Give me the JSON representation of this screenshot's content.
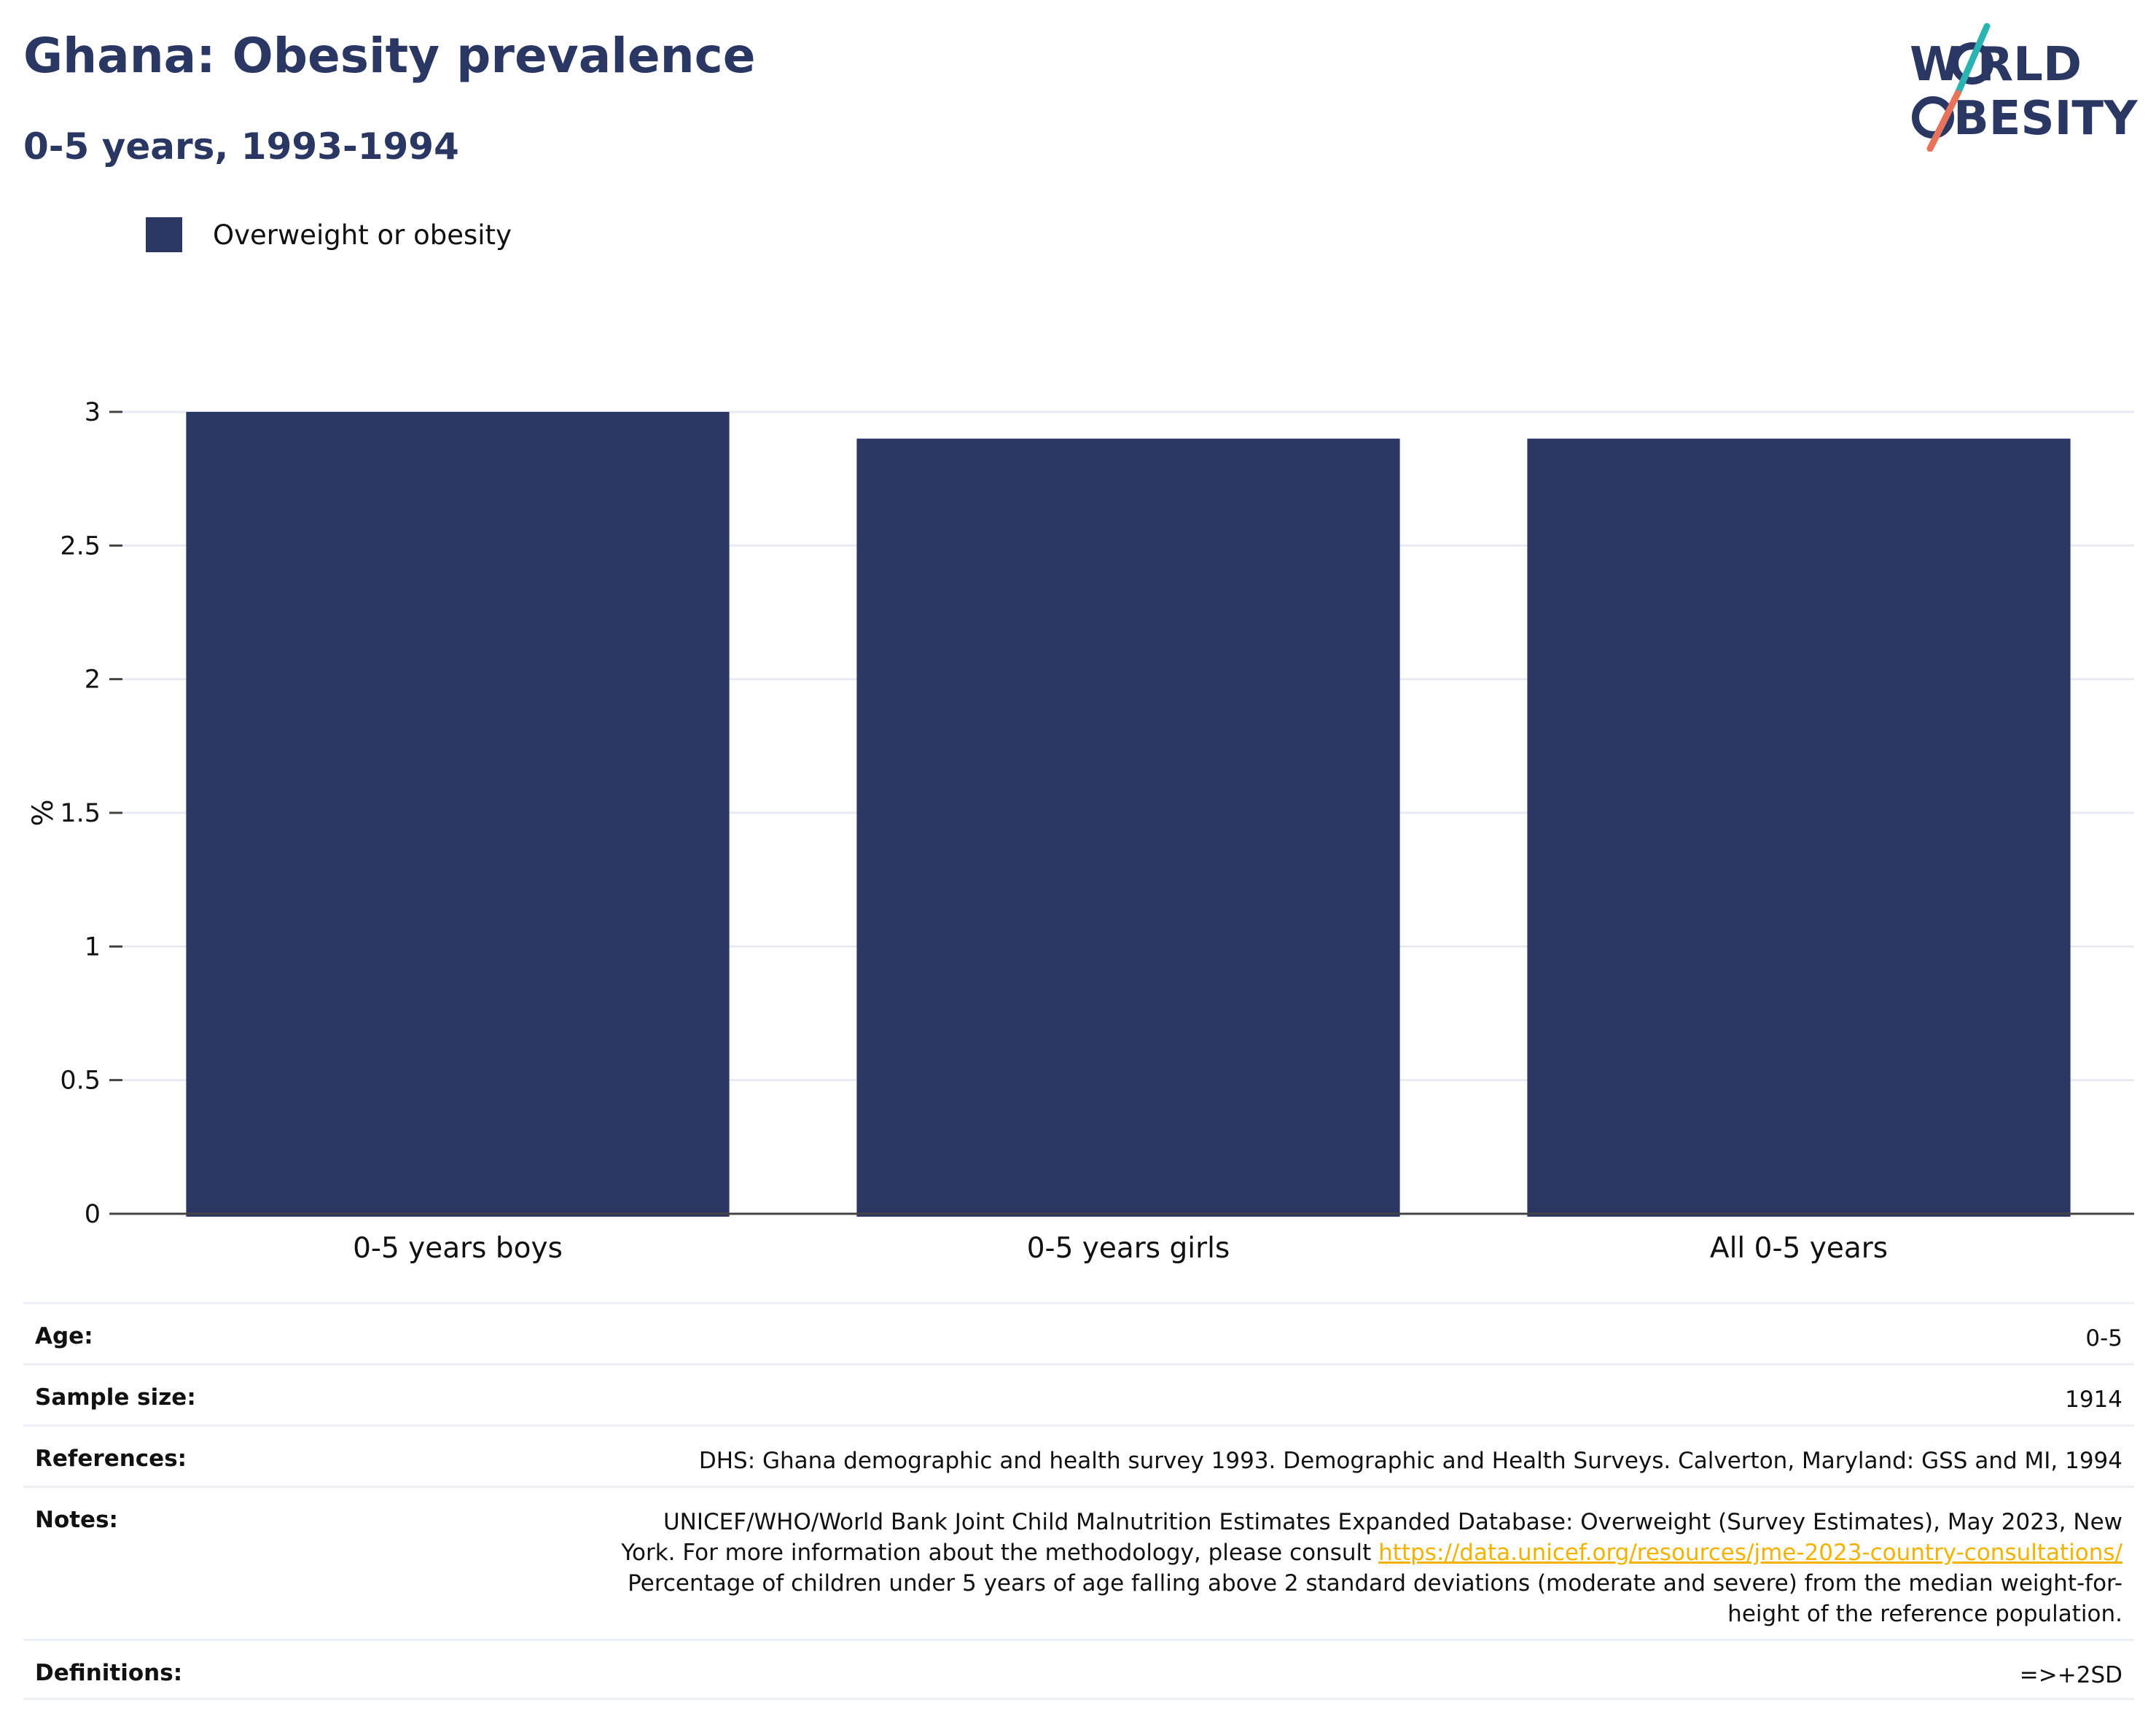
{
  "header": {
    "title": "Ghana: Obesity prevalence",
    "subtitle": "0-5 years, 1993-1994"
  },
  "logo": {
    "line1": "W RLD",
    "line2": "BESITY",
    "colors": {
      "text": "#2a3763",
      "slash_top": "#2bb3b1",
      "slash_bottom": "#e8735a"
    }
  },
  "legend": {
    "items": [
      {
        "label": "Overweight or obesity",
        "color": "#2a3763"
      }
    ]
  },
  "chart_data": {
    "type": "bar",
    "categories": [
      "0-5 years boys",
      "0-5 years girls",
      "All 0-5 years"
    ],
    "series": [
      {
        "name": "Overweight or obesity",
        "values": [
          3.0,
          2.9,
          2.9
        ]
      }
    ],
    "ylabel": "%",
    "xlabel": "",
    "ylim": [
      0,
      3
    ],
    "yticks": [
      "0",
      "0.5",
      "1",
      "1.5",
      "2",
      "2.5",
      "3"
    ],
    "grid": true,
    "legend_position": "top-left"
  },
  "info": {
    "age": {
      "label": "Age:",
      "value": "0-5"
    },
    "sample_size": {
      "label": "Sample size:",
      "value": "1914"
    },
    "references": {
      "label": "References:",
      "value": "DHS: Ghana demographic and health survey 1993. Demographic and Health Surveys. Calverton, Maryland: GSS and MI, 1994"
    },
    "notes": {
      "label": "Notes:",
      "text_before": "UNICEF/WHO/World Bank Joint Child Malnutrition Estimates Expanded Database: Overweight (Survey Estimates), May 2023, New York. For more information about the methodology, please consult ",
      "link": "https://data.unicef.org/resources/jme-2023-country-consultations/",
      "text_after": " Percentage of children under 5 years of age falling above 2 standard deviations (moderate and severe) from the median weight-for-height of the reference population."
    },
    "definitions": {
      "label": "Definitions:",
      "value": "=>+2SD"
    }
  }
}
